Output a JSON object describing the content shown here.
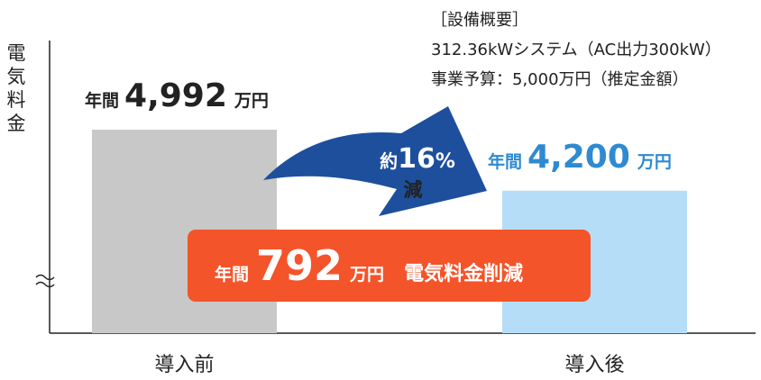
{
  "chart_data": {
    "type": "bar",
    "y_label": "電気料金",
    "categories": [
      "導入前",
      "導入後"
    ],
    "values": [
      4992,
      4200
    ],
    "value_labels": [
      "4,992",
      "4,200"
    ],
    "value_prefix": "年間",
    "value_unit": "万円",
    "colors": [
      "#c8c8c8",
      "#b5ddf8"
    ],
    "label_colors": [
      "#222222",
      "#2f8ad0"
    ],
    "ylim": [
      2350,
      6150
    ],
    "axis_break": true,
    "reduction": {
      "prefix": "約",
      "value": 16,
      "unit": "%",
      "suffix": "減",
      "color": "#1d4f9c"
    },
    "savings": {
      "prefix": "年間",
      "value": 792,
      "unit": "万円",
      "text": "電気料金削減",
      "color": "#f4542a"
    },
    "notes": [
      "［設備概要］",
      "312.36kWシステム（AC出力300kW）",
      "事業予算：5,000万円（推定金額）"
    ]
  }
}
